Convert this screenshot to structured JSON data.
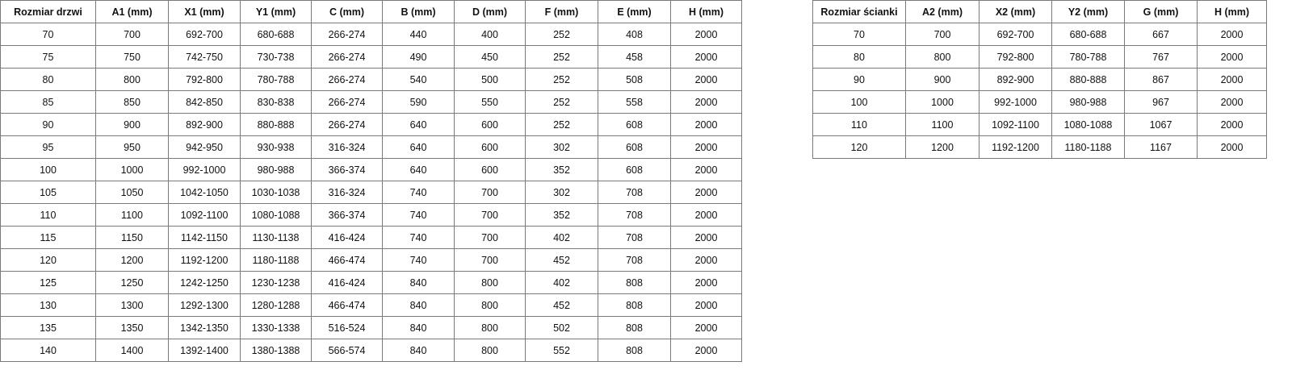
{
  "doors_table": {
    "headers": [
      "Rozmiar drzwi",
      "A1 (mm)",
      "X1 (mm)",
      "Y1 (mm)",
      "C (mm)",
      "B (mm)",
      "D (mm)",
      "F (mm)",
      "E (mm)",
      "H (mm)"
    ],
    "rows": [
      [
        "70",
        "700",
        "692-700",
        "680-688",
        "266-274",
        "440",
        "400",
        "252",
        "408",
        "2000"
      ],
      [
        "75",
        "750",
        "742-750",
        "730-738",
        "266-274",
        "490",
        "450",
        "252",
        "458",
        "2000"
      ],
      [
        "80",
        "800",
        "792-800",
        "780-788",
        "266-274",
        "540",
        "500",
        "252",
        "508",
        "2000"
      ],
      [
        "85",
        "850",
        "842-850",
        "830-838",
        "266-274",
        "590",
        "550",
        "252",
        "558",
        "2000"
      ],
      [
        "90",
        "900",
        "892-900",
        "880-888",
        "266-274",
        "640",
        "600",
        "252",
        "608",
        "2000"
      ],
      [
        "95",
        "950",
        "942-950",
        "930-938",
        "316-324",
        "640",
        "600",
        "302",
        "608",
        "2000"
      ],
      [
        "100",
        "1000",
        "992-1000",
        "980-988",
        "366-374",
        "640",
        "600",
        "352",
        "608",
        "2000"
      ],
      [
        "105",
        "1050",
        "1042-1050",
        "1030-1038",
        "316-324",
        "740",
        "700",
        "302",
        "708",
        "2000"
      ],
      [
        "110",
        "1100",
        "1092-1100",
        "1080-1088",
        "366-374",
        "740",
        "700",
        "352",
        "708",
        "2000"
      ],
      [
        "115",
        "1150",
        "1142-1150",
        "1130-1138",
        "416-424",
        "740",
        "700",
        "402",
        "708",
        "2000"
      ],
      [
        "120",
        "1200",
        "1192-1200",
        "1180-1188",
        "466-474",
        "740",
        "700",
        "452",
        "708",
        "2000"
      ],
      [
        "125",
        "1250",
        "1242-1250",
        "1230-1238",
        "416-424",
        "840",
        "800",
        "402",
        "808",
        "2000"
      ],
      [
        "130",
        "1300",
        "1292-1300",
        "1280-1288",
        "466-474",
        "840",
        "800",
        "452",
        "808",
        "2000"
      ],
      [
        "135",
        "1350",
        "1342-1350",
        "1330-1338",
        "516-524",
        "840",
        "800",
        "502",
        "808",
        "2000"
      ],
      [
        "140",
        "1400",
        "1392-1400",
        "1380-1388",
        "566-574",
        "840",
        "800",
        "552",
        "808",
        "2000"
      ]
    ]
  },
  "wall_table": {
    "headers": [
      "Rozmiar ścianki",
      "A2 (mm)",
      "X2 (mm)",
      "Y2 (mm)",
      "G (mm)",
      "H (mm)"
    ],
    "rows": [
      [
        "70",
        "700",
        "692-700",
        "680-688",
        "667",
        "2000"
      ],
      [
        "80",
        "800",
        "792-800",
        "780-788",
        "767",
        "2000"
      ],
      [
        "90",
        "900",
        "892-900",
        "880-888",
        "867",
        "2000"
      ],
      [
        "100",
        "1000",
        "992-1000",
        "980-988",
        "967",
        "2000"
      ],
      [
        "110",
        "1100",
        "1092-1100",
        "1080-1088",
        "1067",
        "2000"
      ],
      [
        "120",
        "1200",
        "1192-1200",
        "1180-1188",
        "1167",
        "2000"
      ]
    ]
  }
}
